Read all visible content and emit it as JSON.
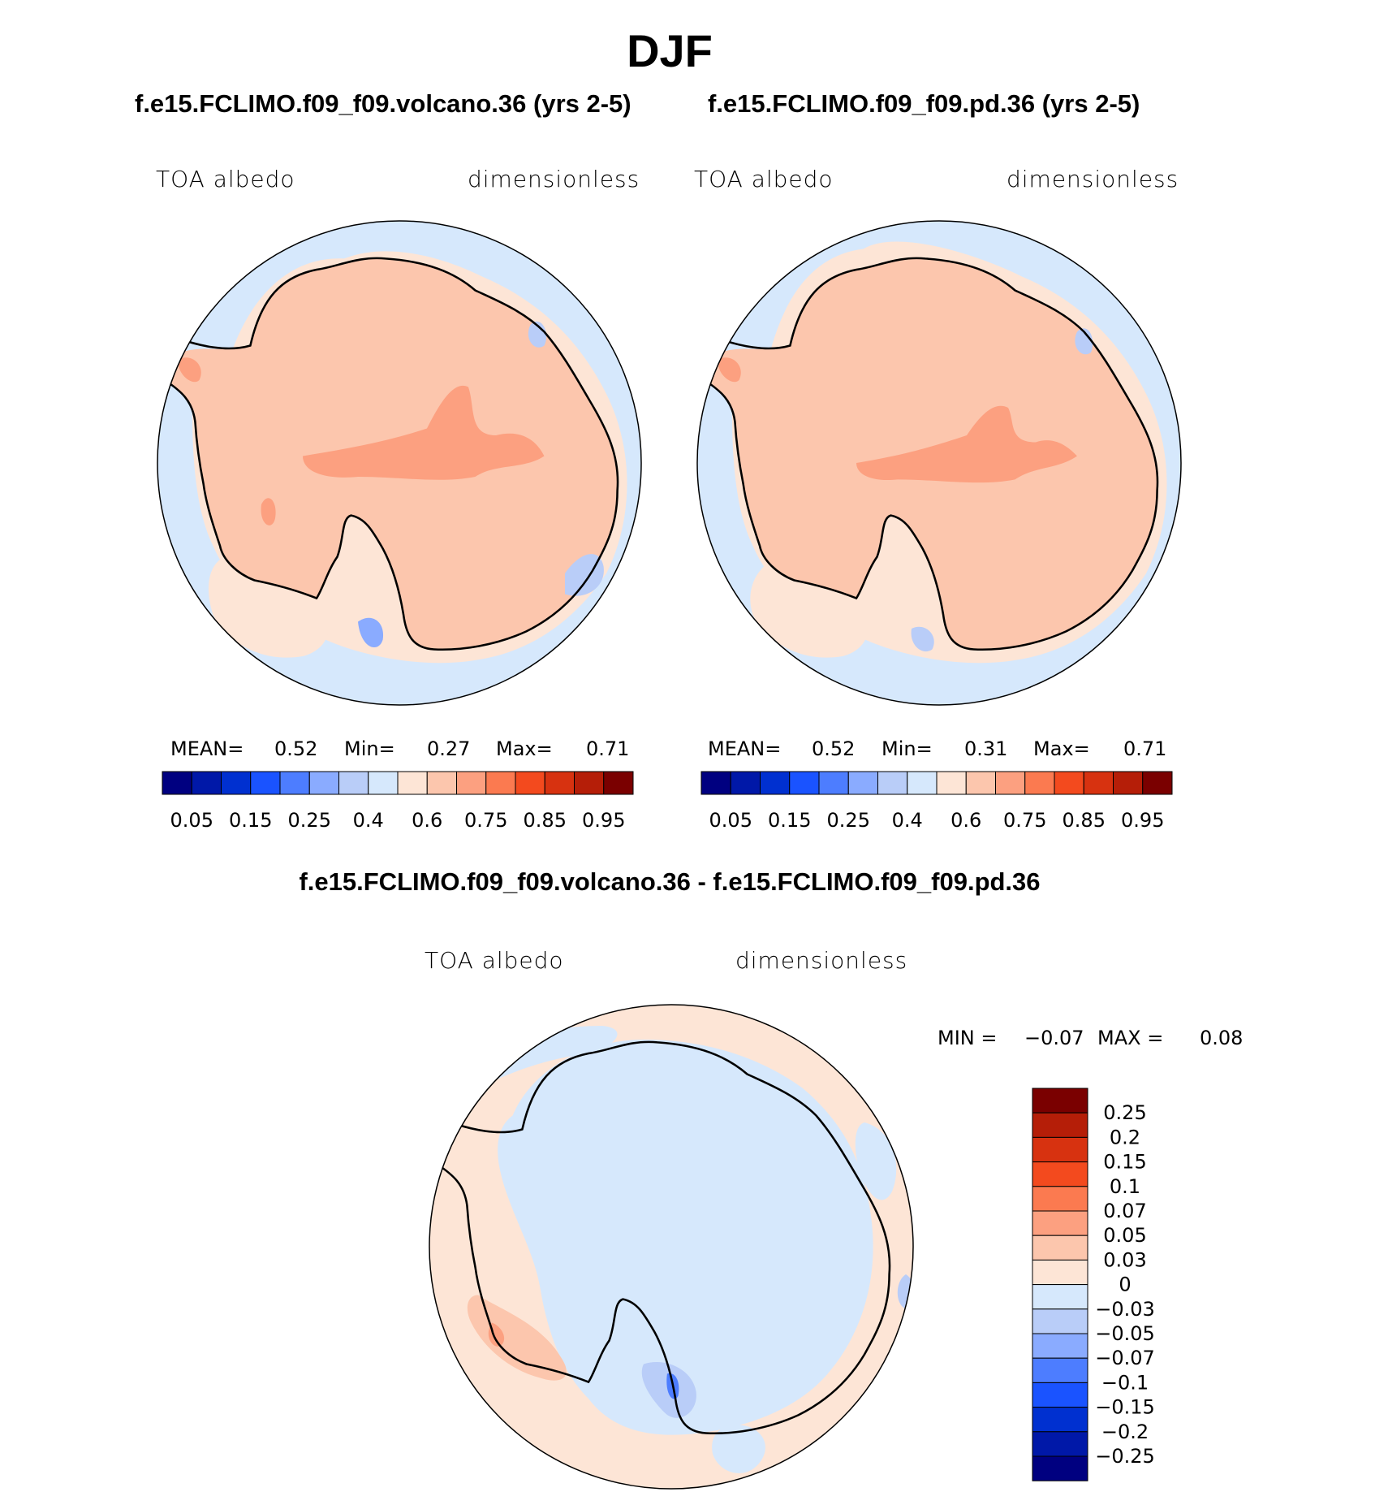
{
  "figure": {
    "season": "DJF",
    "case_left": "f.e15.FCLIMO.f09_f09.volcano.36 (yrs 2-5)",
    "case_right": "f.e15.FCLIMO.f09_f09.pd.36 (yrs 2-5)",
    "diff_title": "f.e15.FCLIMO.f09_f09.volcano.36 - f.e15.FCLIMO.f09_f09.pd.36"
  },
  "panels": {
    "left": {
      "variable": "TOA albedo",
      "units": "dimensionless",
      "mean_label": "MEAN=",
      "mean": "0.52",
      "min_label": "Min=",
      "min": "0.27",
      "max_label": "Max=",
      "max": "0.71"
    },
    "right": {
      "variable": "TOA albedo",
      "units": "dimensionless",
      "mean_label": "MEAN=",
      "mean": "0.52",
      "min_label": "Min=",
      "min": "0.31",
      "max_label": "Max=",
      "max": "0.71"
    },
    "diff": {
      "variable": "TOA albedo",
      "units": "dimensionless",
      "min_label": "MIN =",
      "min": "−0.07",
      "max_label": "MAX =",
      "max": "0.08"
    }
  },
  "chart_data": [
    {
      "type": "map",
      "projection": "south-polar stereographic",
      "title": "f.e15.FCLIMO.f09_f09.volcano.36 (yrs 2-5)",
      "variable": "TOA albedo",
      "units": "dimensionless",
      "stats": {
        "mean": 0.52,
        "min": 0.27,
        "max": 0.71
      },
      "legend_levels": [
        0.05,
        0.1,
        0.15,
        0.2,
        0.25,
        0.3,
        0.4,
        0.5,
        0.6,
        0.7,
        0.75,
        0.8,
        0.85,
        0.9,
        0.95
      ],
      "legend_labels": [
        "0.05",
        "0.15",
        "0.25",
        "0.4",
        "0.6",
        "0.75",
        "0.85",
        "0.95"
      ],
      "colors": [
        "#000080",
        "#0018a8",
        "#0030d0",
        "#1a53ff",
        "#4d7dff",
        "#8aabff",
        "#b9cdf8",
        "#d6e8fc",
        "#fde5d6",
        "#fcc6ad",
        "#fca080",
        "#fb7a50",
        "#f34a1e",
        "#d73210",
        "#b51e08",
        "#7a0000"
      ]
    },
    {
      "type": "map",
      "projection": "south-polar stereographic",
      "title": "f.e15.FCLIMO.f09_f09.pd.36 (yrs 2-5)",
      "variable": "TOA albedo",
      "units": "dimensionless",
      "stats": {
        "mean": 0.52,
        "min": 0.31,
        "max": 0.71
      },
      "legend_levels": [
        0.05,
        0.1,
        0.15,
        0.2,
        0.25,
        0.3,
        0.4,
        0.5,
        0.6,
        0.7,
        0.75,
        0.8,
        0.85,
        0.9,
        0.95
      ],
      "legend_labels": [
        "0.05",
        "0.15",
        "0.25",
        "0.4",
        "0.6",
        "0.75",
        "0.85",
        "0.95"
      ],
      "colors": [
        "#000080",
        "#0018a8",
        "#0030d0",
        "#1a53ff",
        "#4d7dff",
        "#8aabff",
        "#b9cdf8",
        "#d6e8fc",
        "#fde5d6",
        "#fcc6ad",
        "#fca080",
        "#fb7a50",
        "#f34a1e",
        "#d73210",
        "#b51e08",
        "#7a0000"
      ]
    },
    {
      "type": "map",
      "projection": "south-polar stereographic",
      "title": "f.e15.FCLIMO.f09_f09.volcano.36 - f.e15.FCLIMO.f09_f09.pd.36",
      "variable": "TOA albedo",
      "units": "dimensionless",
      "stats": {
        "min": -0.07,
        "max": 0.08
      },
      "legend_labels": [
        "0.25",
        "0.2",
        "0.15",
        "0.1",
        "0.07",
        "0.05",
        "0.03",
        "0",
        "−0.03",
        "−0.05",
        "−0.07",
        "−0.1",
        "−0.15",
        "−0.2",
        "−0.25"
      ],
      "colors": [
        "#7a0000",
        "#b51e08",
        "#d73210",
        "#f34a1e",
        "#fb7a50",
        "#fca080",
        "#fcc6ad",
        "#fde5d6",
        "#d6e8fc",
        "#b9cdf8",
        "#8aabff",
        "#4d7dff",
        "#1a53ff",
        "#0030d0",
        "#0018a8",
        "#000080"
      ]
    }
  ]
}
